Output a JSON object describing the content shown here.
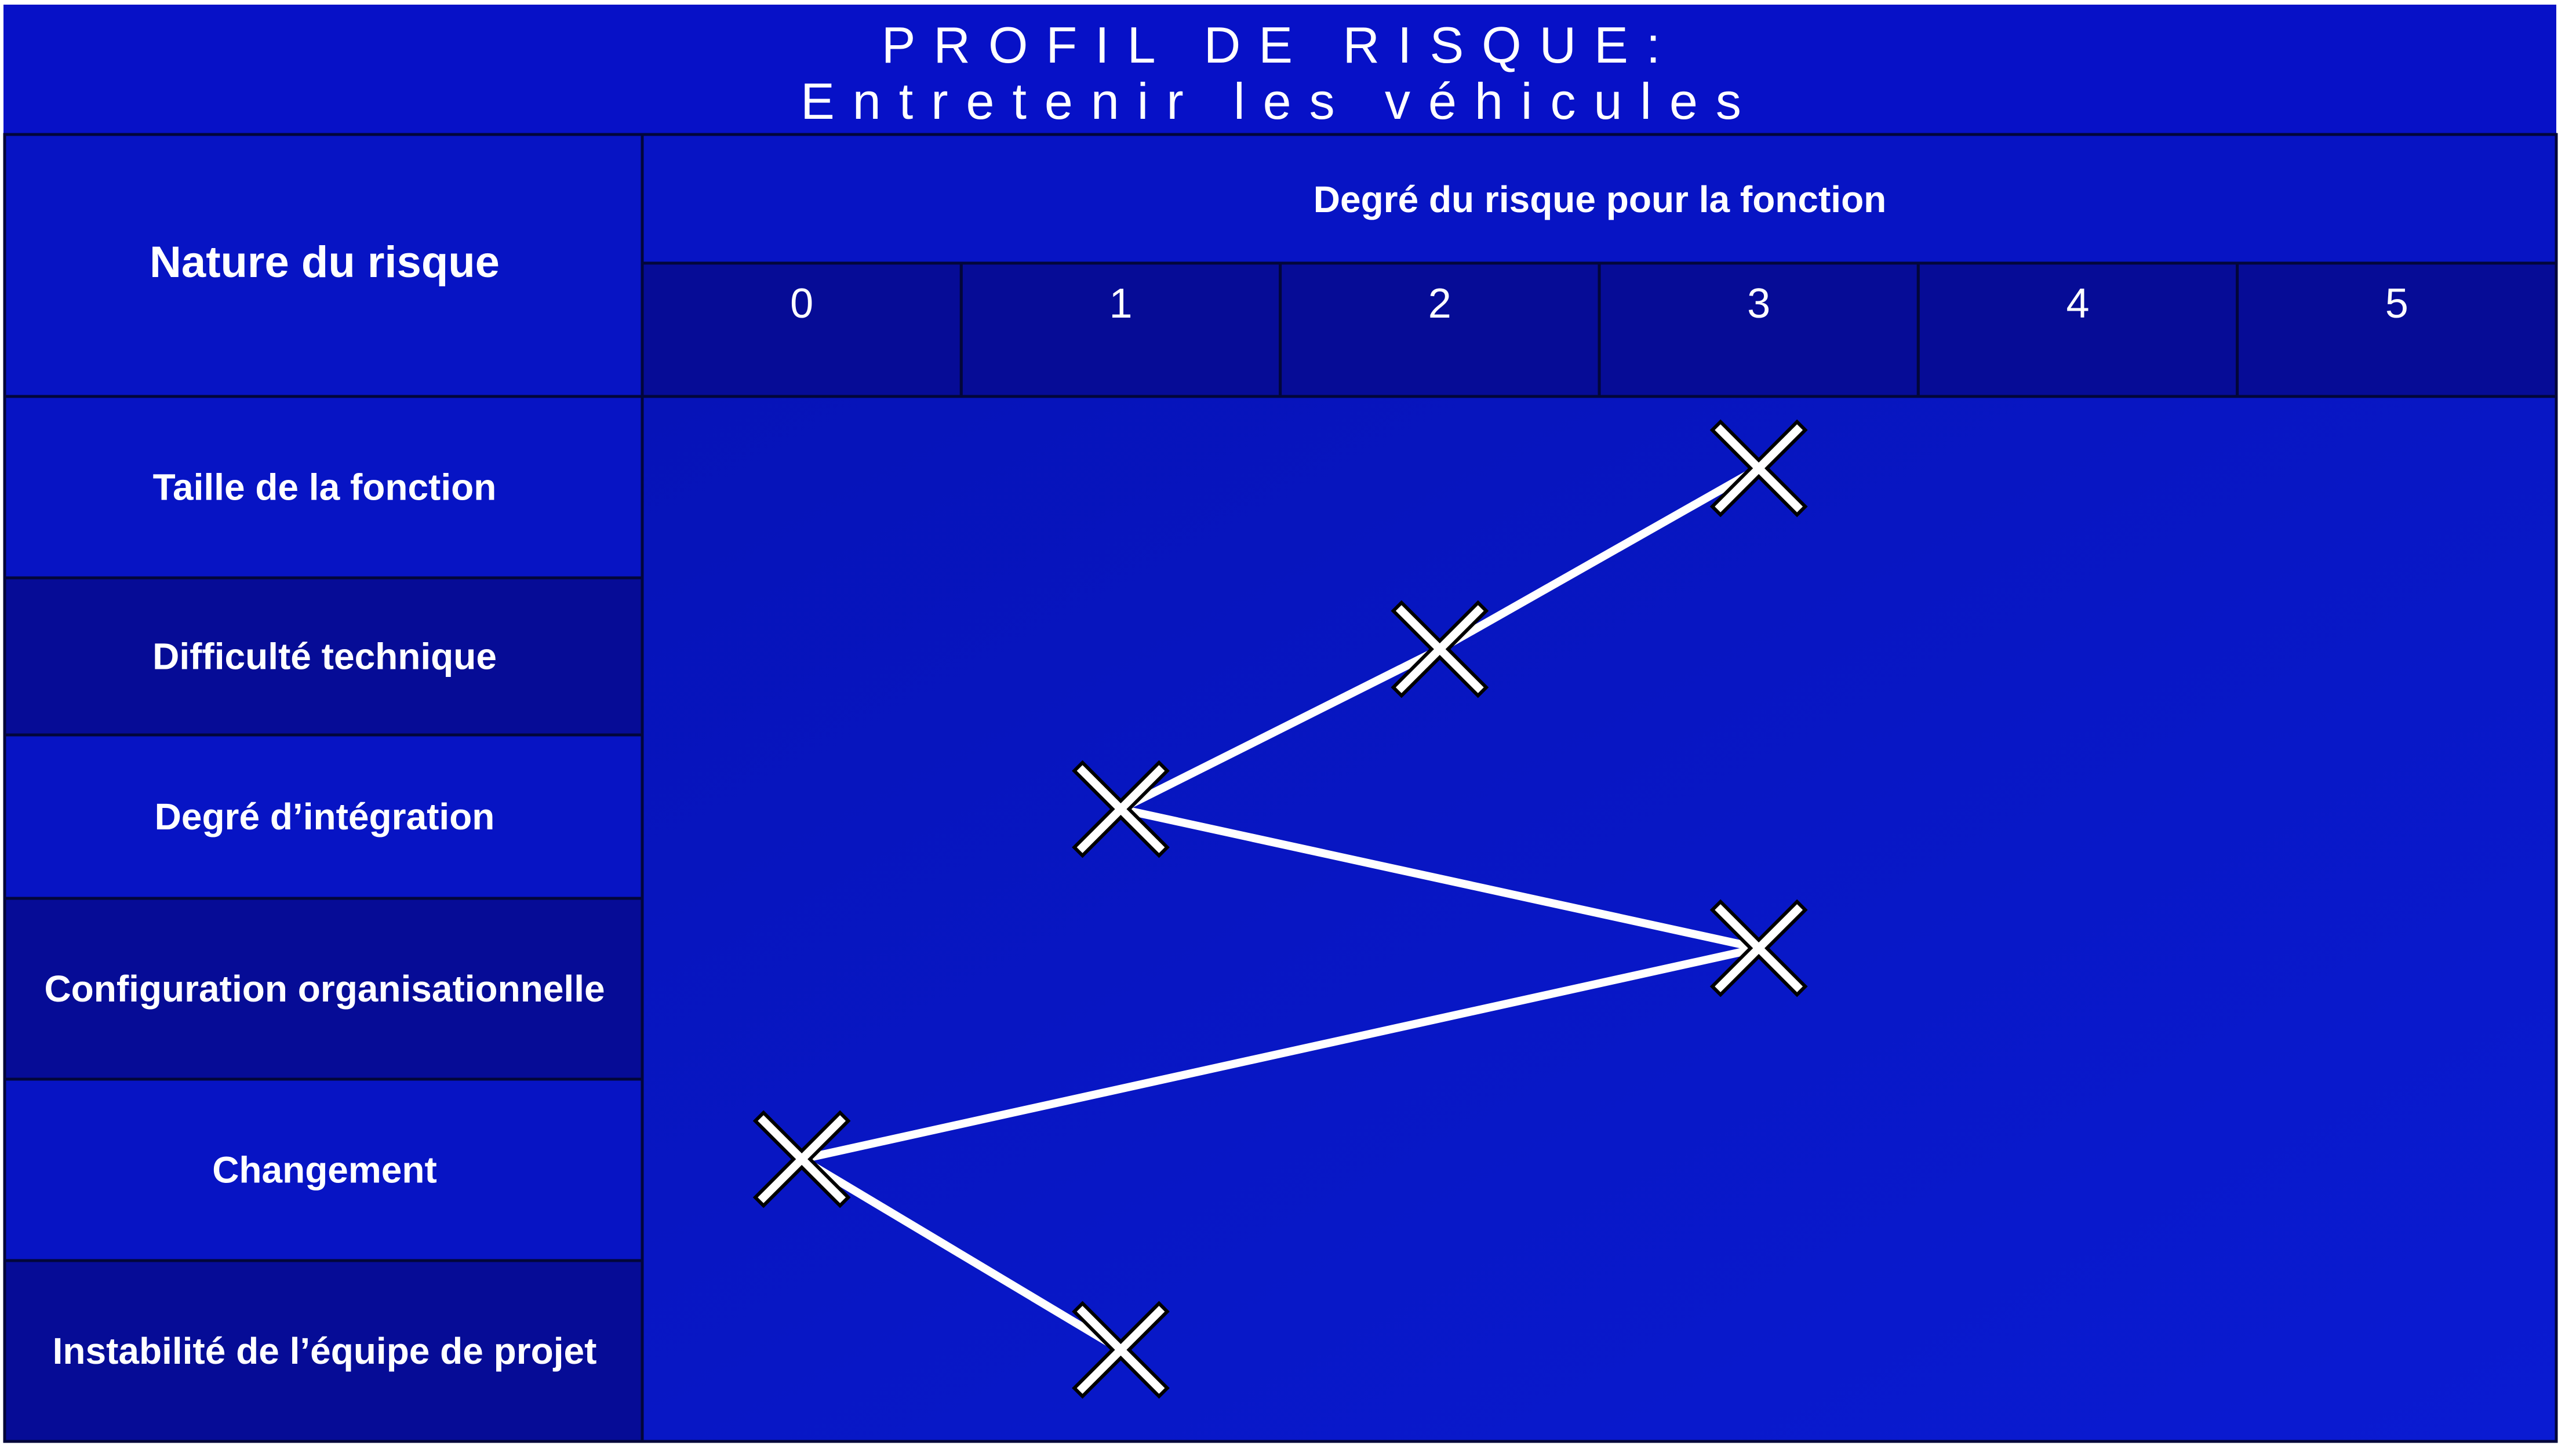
{
  "title": {
    "line1": "PROFIL DE RISQUE:",
    "line2": "Entretenir les véhicules"
  },
  "colors": {
    "header_blue": "#0711c7",
    "cell_light": "#0714c4",
    "cell_dark": "#060c96",
    "plot_bg": "#0616c6",
    "line": "#ffffff",
    "marker": "#ffffff"
  },
  "chart_data": {
    "type": "line",
    "row_header": "Nature du risque",
    "column_header": "Degré du risque pour la fonction",
    "x_ticks": [
      "0",
      "1",
      "2",
      "3",
      "4",
      "5"
    ],
    "xlim": [
      0,
      5
    ],
    "categories": [
      "Taille de la fonction",
      "Difficulté technique",
      "Degré d’intégration",
      "Configuration organisationnelle",
      "Changement",
      "Instabilité de l’équipe de projet"
    ],
    "values": [
      3,
      2,
      1,
      3,
      0,
      1
    ],
    "marker": "x-cross"
  }
}
